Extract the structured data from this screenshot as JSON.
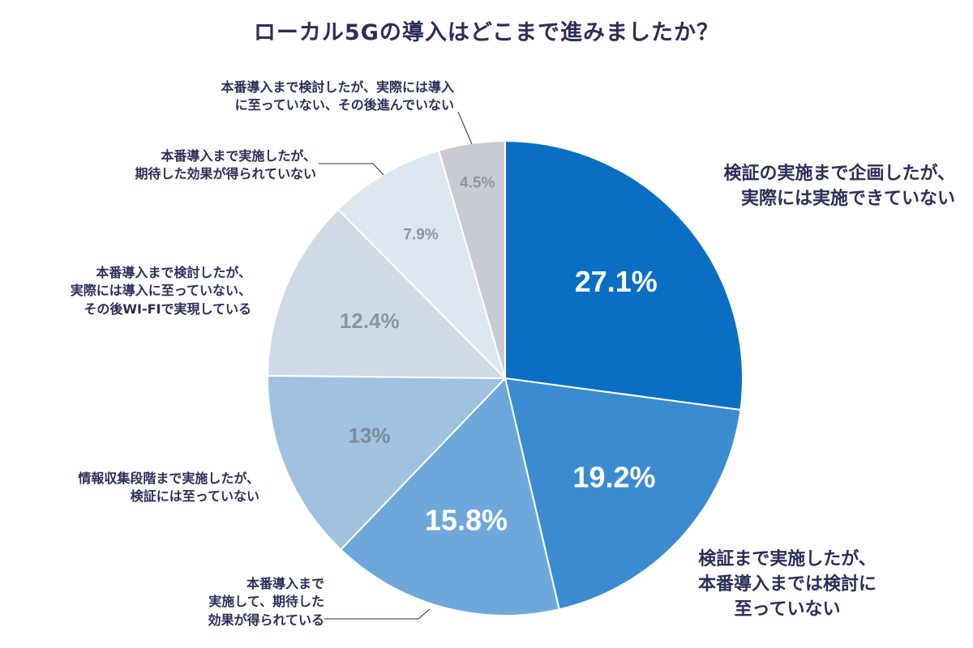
{
  "title": "ローカル5Gの導入はどこまで進みましたか？",
  "chart_data": {
    "type": "pie",
    "start_angle_deg": 0,
    "direction": "clockwise",
    "slices": [
      {
        "label_lines": [
          "検証の実施まで企画したが、",
          "実際には実施できていない"
        ],
        "value": 27.1,
        "value_label": "27.1%",
        "color": "#0a6fc2",
        "text_color": "#ffffff"
      },
      {
        "label_lines": [
          "検証まで実施したが、",
          "本番導入までは検討に",
          "至っていない"
        ],
        "value": 19.2,
        "value_label": "19.2%",
        "color": "#3b8bd0",
        "text_color": "#ffffff"
      },
      {
        "label_lines": [
          "本番導入まで",
          "実施して、期待した",
          "効果が得られている"
        ],
        "value": 15.8,
        "value_label": "15.8%",
        "color": "#6ea8db",
        "text_color": "#ffffff"
      },
      {
        "label_lines": [
          "情報収集段階まで実施したが、",
          "検証には至っていない"
        ],
        "value": 13,
        "value_label": "13%",
        "color": "#a0c2e0",
        "text_color": "#7d8a99"
      },
      {
        "label_lines": [
          "本番導入まで検討したが、",
          "実際には導入に至っていない、",
          "その後WI-FIで実現している"
        ],
        "value": 12.4,
        "value_label": "12.4%",
        "color": "#d0dae6",
        "text_color": "#8c96a3"
      },
      {
        "label_lines": [
          "本番導入まで実施したが、",
          "期待した効果が得られていない"
        ],
        "value": 7.9,
        "value_label": "7.9%",
        "color": "#dde6ee",
        "text_color": "#8c96a3"
      },
      {
        "label_lines": [
          "本番導入まで検討したが、実際には導入",
          "に至っていない、その後進んでいない"
        ],
        "value": 4.5,
        "value_label": "4.5%",
        "color": "#c8ccd2",
        "text_color": "#8c96a3"
      }
    ]
  }
}
